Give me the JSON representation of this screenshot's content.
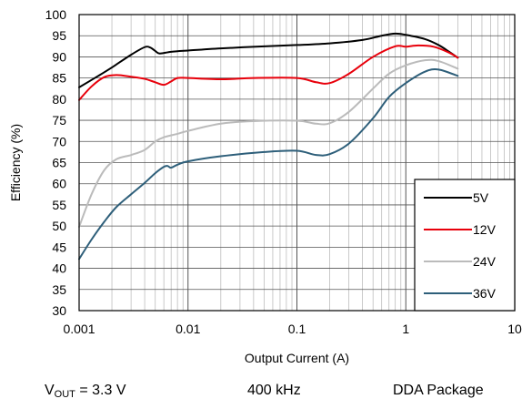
{
  "chart_data": {
    "type": "line",
    "xlabel": "Output Current (A)",
    "ylabel": "Efficiency (%)",
    "xscale": "log",
    "xlim": [
      0.001,
      10
    ],
    "ylim": [
      30,
      100
    ],
    "x_tick_labels": [
      "0.001",
      "0.01",
      "0.1",
      "1",
      "10"
    ],
    "x_ticks": [
      0.001,
      0.01,
      0.1,
      1,
      10
    ],
    "y_ticks": [
      30,
      35,
      40,
      45,
      50,
      55,
      60,
      65,
      70,
      75,
      80,
      85,
      90,
      95,
      100
    ],
    "grid": true,
    "legend_position": "bottom-right",
    "series": [
      {
        "name": "5V",
        "color": "#000000",
        "points": [
          [
            0.001,
            82.8
          ],
          [
            0.0015,
            85.5
          ],
          [
            0.002,
            87.5
          ],
          [
            0.003,
            90.5
          ],
          [
            0.004,
            92.3
          ],
          [
            0.0045,
            92.2
          ],
          [
            0.005,
            91.4
          ],
          [
            0.0055,
            90.8
          ],
          [
            0.007,
            91.2
          ],
          [
            0.01,
            91.5
          ],
          [
            0.02,
            92.0
          ],
          [
            0.05,
            92.5
          ],
          [
            0.1,
            92.8
          ],
          [
            0.2,
            93.2
          ],
          [
            0.4,
            94.0
          ],
          [
            0.6,
            95.0
          ],
          [
            0.8,
            95.5
          ],
          [
            1.0,
            95.2
          ],
          [
            1.5,
            94.2
          ],
          [
            2.0,
            92.8
          ],
          [
            2.5,
            91.2
          ],
          [
            3.0,
            89.8
          ]
        ]
      },
      {
        "name": "12V",
        "color": "#e8000b",
        "points": [
          [
            0.001,
            79.8
          ],
          [
            0.0013,
            83.0
          ],
          [
            0.0017,
            85.2
          ],
          [
            0.0022,
            85.7
          ],
          [
            0.003,
            85.3
          ],
          [
            0.004,
            84.8
          ],
          [
            0.005,
            84.0
          ],
          [
            0.006,
            83.4
          ],
          [
            0.007,
            84.2
          ],
          [
            0.008,
            85.0
          ],
          [
            0.01,
            85.0
          ],
          [
            0.02,
            84.7
          ],
          [
            0.04,
            85.0
          ],
          [
            0.1,
            85.0
          ],
          [
            0.15,
            84.0
          ],
          [
            0.2,
            83.8
          ],
          [
            0.3,
            86.0
          ],
          [
            0.5,
            90.0
          ],
          [
            0.8,
            92.5
          ],
          [
            1.0,
            92.4
          ],
          [
            1.3,
            92.7
          ],
          [
            1.8,
            92.4
          ],
          [
            2.5,
            91.0
          ],
          [
            3.0,
            89.8
          ]
        ]
      },
      {
        "name": "24V",
        "color": "#bbbbbb",
        "points": [
          [
            0.001,
            49.8
          ],
          [
            0.0013,
            57.5
          ],
          [
            0.0017,
            63.2
          ],
          [
            0.0022,
            65.8
          ],
          [
            0.003,
            66.8
          ],
          [
            0.004,
            68.0
          ],
          [
            0.005,
            70.0
          ],
          [
            0.006,
            71.0
          ],
          [
            0.008,
            71.8
          ],
          [
            0.01,
            72.5
          ],
          [
            0.02,
            74.2
          ],
          [
            0.04,
            74.8
          ],
          [
            0.1,
            74.9
          ],
          [
            0.15,
            74.2
          ],
          [
            0.2,
            74.3
          ],
          [
            0.3,
            77.0
          ],
          [
            0.5,
            82.5
          ],
          [
            0.7,
            86.0
          ],
          [
            1.0,
            88.0
          ],
          [
            1.5,
            89.2
          ],
          [
            2.0,
            89.0
          ],
          [
            3.0,
            87.2
          ]
        ]
      },
      {
        "name": "36V",
        "color": "#2e5f7a",
        "points": [
          [
            0.001,
            42.2
          ],
          [
            0.0013,
            46.8
          ],
          [
            0.0017,
            51.0
          ],
          [
            0.0022,
            54.5
          ],
          [
            0.003,
            57.5
          ],
          [
            0.004,
            60.2
          ],
          [
            0.005,
            62.5
          ],
          [
            0.006,
            64.0
          ],
          [
            0.0065,
            64.2
          ],
          [
            0.007,
            63.8
          ],
          [
            0.008,
            64.5
          ],
          [
            0.01,
            65.3
          ],
          [
            0.02,
            66.5
          ],
          [
            0.05,
            67.5
          ],
          [
            0.1,
            67.8
          ],
          [
            0.15,
            66.8
          ],
          [
            0.2,
            67.0
          ],
          [
            0.3,
            69.5
          ],
          [
            0.5,
            75.5
          ],
          [
            0.7,
            80.5
          ],
          [
            1.0,
            83.8
          ],
          [
            1.5,
            86.5
          ],
          [
            2.0,
            87.0
          ],
          [
            3.0,
            85.5
          ]
        ]
      }
    ]
  },
  "footer": {
    "vout_prefix": "V",
    "vout_sub": "OUT",
    "vout_value": " = 3.3 V",
    "frequency": "400 kHz",
    "package": "DDA Package"
  }
}
